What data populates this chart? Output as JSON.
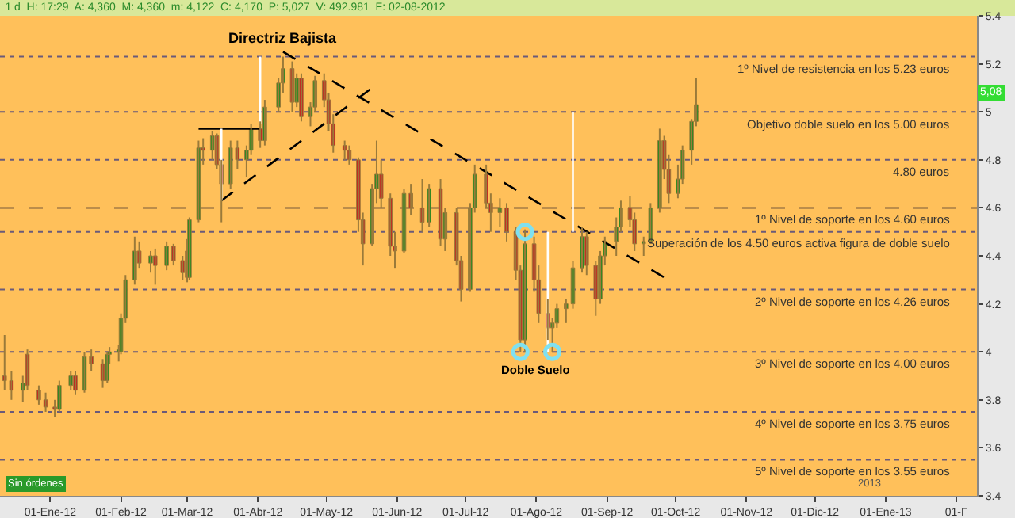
{
  "chart_data": {
    "type": "candlestick",
    "title": "1 d  H: 17:29  A: 4,360  M: 4,360  m: 4,122  C: 4,170  P: 5,027  V: 492.981  F: 02-08-2012",
    "x": [
      "2011-12-12",
      "2011-12-15",
      "2011-12-20",
      "2011-12-22",
      "2011-12-27",
      "2011-12-30",
      "2012-01-03",
      "2012-01-05",
      "2012-01-10",
      "2012-01-12",
      "2012-01-16",
      "2012-01-19",
      "2012-01-24",
      "2012-01-26",
      "2012-01-27",
      "2012-01-31",
      "2012-02-01",
      "2012-02-03",
      "2012-02-07",
      "2012-02-09",
      "2012-02-14",
      "2012-02-16",
      "2012-02-21",
      "2012-02-24",
      "2012-02-28",
      "2012-03-01",
      "2012-03-02",
      "2012-03-06",
      "2012-03-08",
      "2012-03-12",
      "2012-03-14",
      "2012-03-16",
      "2012-03-20",
      "2012-03-23",
      "2012-03-27",
      "2012-03-29",
      "2012-04-02",
      "2012-04-04",
      "2012-04-10",
      "2012-04-12",
      "2012-04-16",
      "2012-04-18",
      "2012-04-20",
      "2012-04-24",
      "2012-04-26",
      "2012-04-30",
      "2012-05-02",
      "2012-05-04",
      "2012-05-09",
      "2012-05-11",
      "2012-05-15",
      "2012-05-17",
      "2012-05-21",
      "2012-05-23",
      "2012-05-25",
      "2012-05-29",
      "2012-05-31",
      "2012-06-04",
      "2012-06-07",
      "2012-06-12",
      "2012-06-15",
      "2012-06-20",
      "2012-06-22",
      "2012-06-27",
      "2012-06-29",
      "2012-07-03",
      "2012-07-05",
      "2012-07-10",
      "2012-07-12",
      "2012-07-16",
      "2012-07-19",
      "2012-07-23",
      "2012-07-25",
      "2012-07-27",
      "2012-07-31",
      "2012-08-02",
      "2012-08-06",
      "2012-08-08",
      "2012-08-10",
      "2012-08-14",
      "2012-08-17",
      "2012-08-21",
      "2012-08-23",
      "2012-08-27",
      "2012-08-29",
      "2012-08-31",
      "2012-09-05",
      "2012-09-07",
      "2012-09-11",
      "2012-09-13",
      "2012-09-17",
      "2012-09-20",
      "2012-09-24",
      "2012-09-26",
      "2012-09-28",
      "2012-10-02",
      "2012-10-04",
      "2012-10-08",
      "2012-10-10"
    ],
    "ohlc": [
      [
        3.9,
        4.07,
        3.84,
        3.88
      ],
      [
        3.88,
        3.92,
        3.8,
        3.84
      ],
      [
        3.84,
        3.9,
        3.79,
        3.87
      ],
      [
        3.99,
        4.01,
        3.84,
        3.86
      ],
      [
        3.84,
        3.86,
        3.78,
        3.8
      ],
      [
        3.8,
        3.83,
        3.75,
        3.77
      ],
      [
        3.77,
        3.8,
        3.73,
        3.76
      ],
      [
        3.76,
        3.88,
        3.75,
        3.86
      ],
      [
        3.86,
        3.92,
        3.84,
        3.9
      ],
      [
        3.9,
        3.92,
        3.82,
        3.84
      ],
      [
        3.84,
        4.0,
        3.83,
        3.98
      ],
      [
        3.98,
        4.01,
        3.92,
        3.95
      ],
      [
        3.95,
        3.97,
        3.85,
        3.88
      ],
      [
        3.88,
        4.0,
        3.87,
        3.99
      ],
      [
        3.99,
        4.02,
        3.95,
        4.0
      ],
      [
        4.0,
        4.03,
        3.96,
        4.01
      ],
      [
        4.0,
        4.16,
        3.99,
        4.14
      ],
      [
        4.14,
        4.32,
        4.12,
        4.3
      ],
      [
        4.3,
        4.48,
        4.28,
        4.42
      ],
      [
        4.42,
        4.46,
        4.35,
        4.37
      ],
      [
        4.37,
        4.42,
        4.33,
        4.4
      ],
      [
        4.4,
        4.43,
        4.28,
        4.36
      ],
      [
        4.36,
        4.46,
        4.34,
        4.44
      ],
      [
        4.44,
        4.45,
        4.36,
        4.38
      ],
      [
        4.38,
        4.4,
        4.3,
        4.33
      ],
      [
        4.42,
        4.47,
        4.29,
        4.31
      ],
      [
        4.31,
        4.56,
        4.3,
        4.55
      ],
      [
        4.55,
        4.88,
        4.54,
        4.85
      ],
      [
        4.85,
        4.89,
        4.78,
        4.84
      ],
      [
        4.84,
        4.92,
        4.8,
        4.9
      ],
      [
        4.9,
        4.91,
        4.76,
        4.78
      ],
      [
        4.78,
        4.8,
        4.54,
        4.7
      ],
      [
        4.7,
        4.88,
        4.68,
        4.85
      ],
      [
        4.85,
        4.88,
        4.76,
        4.8
      ],
      [
        4.8,
        4.86,
        4.73,
        4.84
      ],
      [
        4.84,
        4.95,
        4.82,
        4.93
      ],
      [
        4.93,
        4.96,
        4.85,
        4.88
      ],
      [
        4.88,
        5.05,
        4.86,
        5.02
      ],
      [
        5.02,
        5.14,
        5.0,
        5.12
      ],
      [
        5.12,
        5.23,
        5.08,
        5.18
      ],
      [
        5.18,
        5.21,
        5.0,
        5.04
      ],
      [
        5.04,
        5.16,
        5.02,
        5.14
      ],
      [
        5.14,
        5.16,
        4.96,
        4.98
      ],
      [
        4.98,
        5.04,
        4.94,
        5.02
      ],
      [
        5.02,
        5.15,
        5.0,
        5.13
      ],
      [
        5.13,
        5.16,
        5.02,
        5.05
      ],
      [
        5.05,
        5.08,
        4.92,
        4.95
      ],
      [
        4.95,
        4.99,
        4.83,
        4.86
      ],
      [
        4.86,
        4.88,
        4.8,
        4.84
      ],
      [
        4.84,
        4.86,
        4.78,
        4.8
      ],
      [
        4.8,
        4.81,
        4.5,
        4.55
      ],
      [
        4.55,
        4.58,
        4.36,
        4.45
      ],
      [
        4.45,
        4.7,
        4.44,
        4.68
      ],
      [
        4.68,
        4.88,
        4.62,
        4.74
      ],
      [
        4.74,
        4.8,
        4.6,
        4.64
      ],
      [
        4.64,
        4.66,
        4.4,
        4.44
      ],
      [
        4.44,
        4.5,
        4.35,
        4.42
      ],
      [
        4.42,
        4.68,
        4.41,
        4.66
      ],
      [
        4.66,
        4.7,
        4.57,
        4.6
      ],
      [
        4.6,
        4.72,
        4.5,
        4.54
      ],
      [
        4.54,
        4.7,
        4.52,
        4.68
      ],
      [
        4.68,
        4.72,
        4.44,
        4.47
      ],
      [
        4.47,
        4.6,
        4.42,
        4.58
      ],
      [
        4.58,
        4.6,
        4.36,
        4.38
      ],
      [
        4.38,
        4.4,
        4.21,
        4.26
      ],
      [
        4.26,
        4.62,
        4.25,
        4.6
      ],
      [
        4.6,
        4.78,
        4.58,
        4.74
      ],
      [
        4.74,
        4.78,
        4.6,
        4.62
      ],
      [
        4.62,
        4.66,
        4.5,
        4.58
      ],
      [
        4.58,
        4.64,
        4.52,
        4.6
      ],
      [
        4.6,
        4.62,
        4.46,
        4.5
      ],
      [
        4.5,
        4.52,
        4.3,
        4.34
      ],
      [
        4.34,
        4.36,
        4.0,
        4.05
      ],
      [
        4.05,
        4.51,
        4.0,
        4.45
      ],
      [
        4.45,
        4.48,
        4.25,
        4.3
      ],
      [
        4.3,
        4.36,
        4.12,
        4.16
      ],
      [
        4.16,
        4.22,
        4.05,
        4.1
      ],
      [
        4.1,
        4.14,
        4.0,
        4.12
      ],
      [
        4.12,
        4.2,
        4.1,
        4.18
      ],
      [
        4.18,
        4.22,
        4.12,
        4.2
      ],
      [
        4.2,
        4.38,
        4.18,
        4.35
      ],
      [
        4.35,
        4.52,
        4.33,
        4.48
      ],
      [
        4.48,
        4.5,
        4.32,
        4.36
      ],
      [
        4.36,
        4.38,
        4.15,
        4.22
      ],
      [
        4.22,
        4.42,
        4.2,
        4.4
      ],
      [
        4.4,
        4.48,
        4.36,
        4.46
      ],
      [
        4.46,
        4.56,
        4.4,
        4.52
      ],
      [
        4.52,
        4.63,
        4.5,
        4.6
      ],
      [
        4.6,
        4.65,
        4.52,
        4.55
      ],
      [
        4.55,
        4.58,
        4.42,
        4.45
      ],
      [
        4.45,
        4.48,
        4.4,
        4.46
      ],
      [
        4.46,
        4.62,
        4.45,
        4.6
      ],
      [
        4.6,
        4.93,
        4.58,
        4.88
      ],
      [
        4.88,
        4.9,
        4.72,
        4.76
      ],
      [
        4.76,
        4.82,
        4.62,
        4.66
      ],
      [
        4.66,
        4.78,
        4.64,
        4.72
      ],
      [
        4.72,
        4.86,
        4.7,
        4.84
      ],
      [
        4.84,
        4.97,
        4.78,
        4.96
      ],
      [
        4.96,
        5.14,
        4.94,
        5.03
      ]
    ],
    "colors": [
      "#c81e1e",
      "#c81e1e",
      "#1e8c1e",
      "#c81e1e",
      "#c81e1e",
      "#c81e1e",
      "#c81e1e",
      "#1e8c1e",
      "#1e8c1e",
      "#c81e1e",
      "#1e8c1e",
      "#c81e1e",
      "#c81e1e",
      "#1e8c1e",
      "#1e8c1e",
      "#1e8c1e",
      "#1e8c1e",
      "#1e8c1e",
      "#1e8c1e",
      "#c81e1e",
      "#1e8c1e",
      "#c81e1e",
      "#1e8c1e",
      "#c81e1e",
      "#c81e1e",
      "#c81e1e",
      "#1e8c1e",
      "#1e8c1e",
      "#c81e1e",
      "#1e8c1e",
      "#c81e1e",
      "#c81e1e",
      "#1e8c1e",
      "#c81e1e",
      "#1e8c1e",
      "#1e8c1e",
      "#c81e1e",
      "#1e8c1e",
      "#1e8c1e",
      "#1e8c1e",
      "#c81e1e",
      "#1e8c1e",
      "#c81e1e",
      "#1e8c1e",
      "#1e8c1e",
      "#c81e1e",
      "#c81e1e",
      "#c81e1e",
      "#c81e1e",
      "#c81e1e",
      "#c81e1e",
      "#c81e1e",
      "#1e8c1e",
      "#1e8c1e",
      "#c81e1e",
      "#c81e1e",
      "#c81e1e",
      "#1e8c1e",
      "#c81e1e",
      "#c81e1e",
      "#1e8c1e",
      "#c81e1e",
      "#1e8c1e",
      "#c81e1e",
      "#c81e1e",
      "#1e8c1e",
      "#1e8c1e",
      "#c81e1e",
      "#c81e1e",
      "#1e8c1e",
      "#c81e1e",
      "#c81e1e",
      "#c81e1e",
      "#1e8c1e",
      "#c81e1e",
      "#c81e1e",
      "#c81e1e",
      "#1e8c1e",
      "#1e8c1e",
      "#1e8c1e",
      "#1e8c1e",
      "#1e8c1e",
      "#c81e1e",
      "#c81e1e",
      "#1e8c1e",
      "#1e8c1e",
      "#1e8c1e",
      "#1e8c1e",
      "#c81e1e",
      "#c81e1e",
      "#1e8c1e",
      "#1e8c1e",
      "#1e8c1e",
      "#c81e1e",
      "#c81e1e",
      "#1e8c1e",
      "#1e8c1e",
      "#1e8c1e",
      "#1e8c1e"
    ],
    "series": [
      {
        "type": "line",
        "x": [
          "2012-04-12",
          "2012-09-26"
        ],
        "values": [
          5.25,
          4.31
        ],
        "color": "#000000",
        "line_style": "dashed"
      },
      {
        "type": "line",
        "x": [
          "2012-03-16",
          "2012-05-21"
        ],
        "values": [
          4.63,
          5.1
        ],
        "color": "#000000",
        "line_style": "dashed"
      },
      {
        "type": "line",
        "x": [
          "2012-03-06",
          "2012-04-02"
        ],
        "values": [
          4.93,
          4.93
        ],
        "color": "#000000",
        "line_style": "solid"
      },
      {
        "type": "line",
        "x": [
          "2012-03-16",
          "2012-03-16"
        ],
        "values": [
          4.63,
          4.93
        ],
        "color": "#ffffff",
        "line_style": "solid"
      },
      {
        "type": "line",
        "x": [
          "2012-04-02",
          "2012-04-02"
        ],
        "values": [
          4.95,
          5.23
        ],
        "color": "#ffffff",
        "line_style": "solid"
      },
      {
        "type": "line",
        "x": [
          "2012-08-06",
          "2012-08-06"
        ],
        "values": [
          4.0,
          4.5
        ],
        "color": "#ffffff",
        "line_style": "solid"
      },
      {
        "type": "line",
        "x": [
          "2012-08-17",
          "2012-08-17"
        ],
        "values": [
          4.5,
          5.0
        ],
        "color": "#ffffff",
        "line_style": "solid"
      },
      {
        "type": "scatter",
        "x": [
          "2012-07-25",
          "2012-07-27",
          "2012-08-08"
        ],
        "values": [
          4.0,
          4.5,
          4.0
        ],
        "color": "#7fe0f0",
        "marker": "circle"
      }
    ],
    "ref_lines": [
      {
        "axis": "y",
        "value": 5.23,
        "label": "1º Nivel de resistencia en los 5.23 euros",
        "color": "#6a5a7a",
        "line_style": "dotted"
      },
      {
        "axis": "y",
        "value": 5.0,
        "label": "Objetivo doble suelo en los 5.00 euros",
        "color": "#6a5a7a",
        "line_style": "dotted"
      },
      {
        "axis": "y",
        "value": 4.8,
        "label": "4.80 euros",
        "color": "#6a5a7a",
        "line_style": "dotted"
      },
      {
        "axis": "y",
        "value": 4.6,
        "label": "1º Nivel de soporte en los 4.60 euros",
        "color": "#7a5a3a",
        "line_style": "dashed"
      },
      {
        "axis": "y",
        "value": 4.5,
        "label": "Superación de los 4.50 euros activa figura de doble suelo",
        "color": "#6a5a7a",
        "line_style": "dotted"
      },
      {
        "axis": "y",
        "value": 4.26,
        "label": "2º Nivel de soporte en los 4.26 euros",
        "color": "#6a5a7a",
        "line_style": "dotted"
      },
      {
        "axis": "y",
        "value": 4.0,
        "label": "3º Nivel de soporte en los 4.00 euros",
        "color": "#6a5a7a",
        "line_style": "dotted"
      },
      {
        "axis": "y",
        "value": 3.75,
        "label": "4º Nivel de soporte en los 3.75 euros",
        "color": "#6a5a7a",
        "line_style": "dotted"
      },
      {
        "axis": "y",
        "value": 3.55,
        "label": "5º Nivel de soporte en los 3.55 euros",
        "color": "#6a5a7a",
        "line_style": "dotted"
      }
    ],
    "annotations": [
      {
        "text": "Directriz Bajista",
        "x": "2012-04-12",
        "y": 5.26
      },
      {
        "text": "Doble Suelo",
        "x": "2012-08-01",
        "y": 3.97
      },
      {
        "text": "5,08",
        "y": 5.08
      },
      "Sin órdenes",
      "2013"
    ],
    "xlim": [
      "2011-12-10",
      "2013-02-10"
    ],
    "xticks": [
      {
        "value": "2012-01-01",
        "label": "01-Ene-12"
      },
      {
        "value": "2012-02-01",
        "label": "01-Feb-12"
      },
      {
        "value": "2012-03-01",
        "label": "01-Mar-12"
      },
      {
        "value": "2012-04-01",
        "label": "01-Abr-12"
      },
      {
        "value": "2012-05-01",
        "label": "01-May-12"
      },
      {
        "value": "2012-06-01",
        "label": "01-Jun-12"
      },
      {
        "value": "2012-07-01",
        "label": "01-Jul-12"
      },
      {
        "value": "2012-08-01",
        "label": "01-Ago-12"
      },
      {
        "value": "2012-09-01",
        "label": "01-Sep-12"
      },
      {
        "value": "2012-10-01",
        "label": "01-Oct-12"
      },
      {
        "value": "2012-11-01",
        "label": "01-Nov-12"
      },
      {
        "value": "2012-12-01",
        "label": "01-Dic-12"
      },
      {
        "value": "2013-01-01",
        "label": "01-Ene-13"
      },
      {
        "value": "2013-02-01",
        "label": "01-F"
      }
    ],
    "ylim": [
      3.4,
      5.4
    ],
    "yticks": [
      3.4,
      3.6,
      3.8,
      4,
      4.2,
      4.4,
      4.6,
      4.8,
      5,
      5.2,
      5.4
    ],
    "grid": false
  }
}
